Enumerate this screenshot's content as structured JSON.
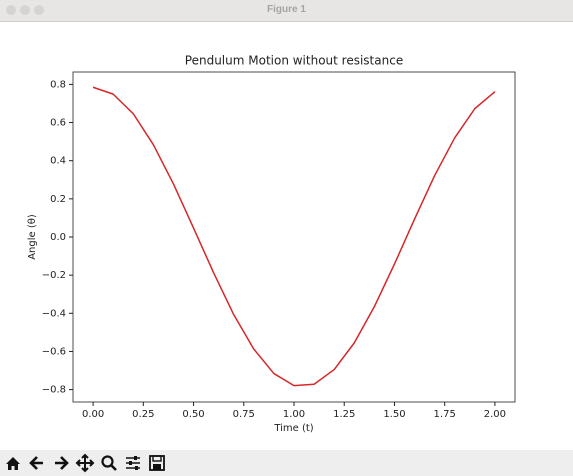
{
  "window": {
    "title": "Figure 1"
  },
  "chart_data": {
    "type": "line",
    "title": "Pendulum Motion without resistance",
    "x_label": "Time (t)",
    "y_label": "Angle (θ)",
    "x": [
      0,
      0.1,
      0.2,
      0.3,
      0.4,
      0.5,
      0.6,
      0.7,
      0.8,
      0.9,
      1.0,
      1.1,
      1.2,
      1.3,
      1.4,
      1.5,
      1.6,
      1.7,
      1.8,
      1.9,
      2.0
    ],
    "series": [
      {
        "color": "#d62728",
        "values": [
          0.785,
          0.749,
          0.646,
          0.484,
          0.278,
          0.047,
          -0.188,
          -0.407,
          -0.588,
          -0.716,
          -0.779,
          -0.772,
          -0.695,
          -0.555,
          -0.365,
          -0.142,
          0.094,
          0.322,
          0.52,
          0.673,
          0.762
        ]
      }
    ],
    "xlim": [
      -0.1,
      2.1
    ],
    "ylim": [
      -0.865,
      0.865
    ],
    "xticks": [
      {
        "value": 0,
        "label": "0.00"
      },
      {
        "value": 0.25,
        "label": "0.25"
      },
      {
        "value": 0.5,
        "label": "0.50"
      },
      {
        "value": 0.75,
        "label": "0.75"
      },
      {
        "value": 1,
        "label": "1.00"
      },
      {
        "value": 1.25,
        "label": "1.25"
      },
      {
        "value": 1.5,
        "label": "1.50"
      },
      {
        "value": 1.75,
        "label": "1.75"
      },
      {
        "value": 2,
        "label": "2.00"
      }
    ],
    "yticks": [
      {
        "value": -0.8,
        "label": "−0.8"
      },
      {
        "value": -0.6,
        "label": "−0.6"
      },
      {
        "value": -0.4,
        "label": "−0.4"
      },
      {
        "value": -0.2,
        "label": "−0.2"
      },
      {
        "value": 0,
        "label": "0.0"
      },
      0.2,
      0.4,
      0.6,
      0.8
    ],
    "grid": false
  }
}
